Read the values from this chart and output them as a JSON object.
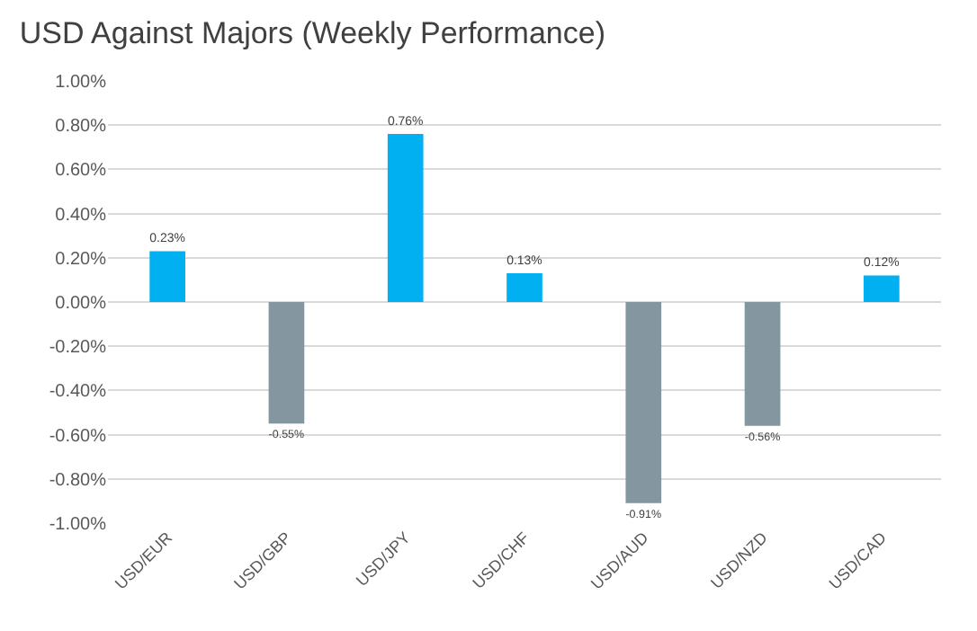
{
  "chart_data": {
    "type": "bar",
    "title": "USD Against Majors (Weekly Performance)",
    "categories": [
      "USD/EUR",
      "USD/GBP",
      "USD/JPY",
      "USD/CHF",
      "USD/AUD",
      "USD/NZD",
      "USD/CAD"
    ],
    "values": [
      0.23,
      -0.55,
      0.76,
      0.13,
      -0.91,
      -0.56,
      0.12
    ],
    "colors": [
      "#00b0f0",
      "#8497a0",
      "#00b0f0",
      "#00b0f0",
      "#8497a0",
      "#8497a0",
      "#00b0f0"
    ],
    "value_labels": [
      "0.23%",
      "-0.55%",
      "0.76%",
      "0.13%",
      "-0.91%",
      "-0.56%",
      "0.12%"
    ],
    "ylim": [
      -1.0,
      1.0
    ],
    "yticks": [
      {
        "value": -1.0,
        "label": "-1.00%"
      },
      {
        "value": -0.8,
        "label": "-0.80%"
      },
      {
        "value": -0.6,
        "label": "-0.60%"
      },
      {
        "value": -0.4,
        "label": "-0.40%"
      },
      {
        "value": -0.2,
        "label": "-0.20%"
      },
      {
        "value": 0,
        "label": "0.00%"
      },
      {
        "value": 0.2,
        "label": "0.20%"
      },
      {
        "value": 0.4,
        "label": "0.40%"
      },
      {
        "value": 0.6,
        "label": "0.60%"
      },
      {
        "value": 0.8,
        "label": "0.80%"
      },
      {
        "value": 1.0,
        "label": "1.00%"
      }
    ],
    "grid": "y"
  }
}
